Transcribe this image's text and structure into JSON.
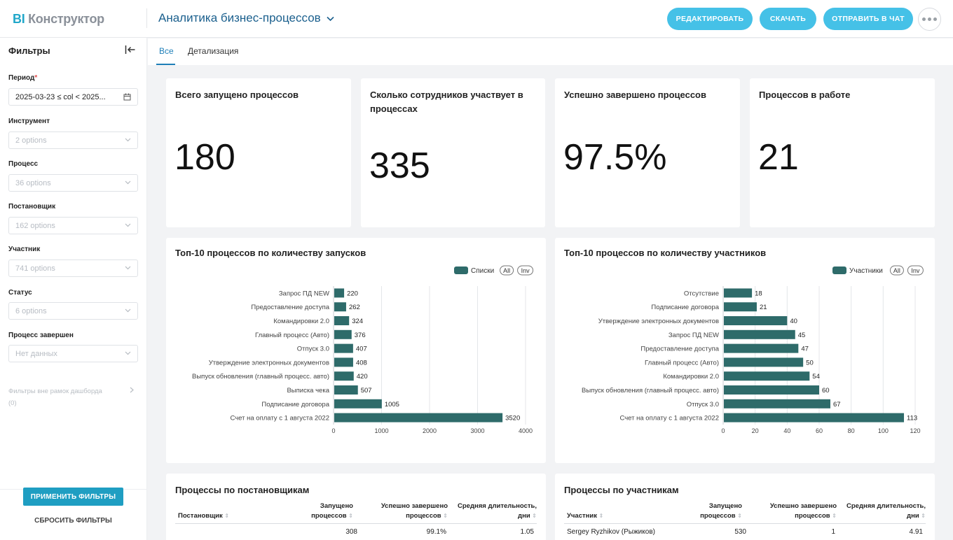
{
  "header": {
    "logo_bi": "BI",
    "logo_text": "Конструктор",
    "dashboard_title": "Аналитика бизнес-процессов",
    "buttons": {
      "edit": "РЕДАКТИРОВАТЬ",
      "download": "СКАЧАТЬ",
      "send": "ОТПРАВИТЬ В ЧАТ"
    }
  },
  "sidebar": {
    "title": "Фильтры",
    "filters": [
      {
        "label": "Период",
        "required": "*",
        "value": "2025-03-23 ≤ col < 2025..."
      },
      {
        "label": "Инструмент",
        "value": "2 options"
      },
      {
        "label": "Процесс",
        "value": "36 options"
      },
      {
        "label": "Постановщик",
        "value": "162 options"
      },
      {
        "label": "Участник",
        "value": "741 options"
      },
      {
        "label": "Статус",
        "value": "6 options"
      },
      {
        "label": "Процесс завершен",
        "value": "Нет данных"
      }
    ],
    "outside_filters": "Фильтры вне рамок дашборда",
    "outside_count": "(0)",
    "apply": "ПРИМЕНИТЬ ФИЛЬТРЫ",
    "reset": "СБРОСИТЬ ФИЛЬТРЫ"
  },
  "tabs": [
    "Все",
    "Детализация"
  ],
  "kpis": [
    {
      "title": "Всего запущено процессов",
      "value": "180"
    },
    {
      "title": "Сколько сотрудников участвует в процессах",
      "value": "335"
    },
    {
      "title": "Успешно завершено процессов",
      "value": "97.5%"
    },
    {
      "title": "Процессов в работе",
      "value": "21"
    }
  ],
  "chart_data": [
    {
      "type": "bar",
      "orientation": "horizontal",
      "title": "Топ-10 процессов по количеству запусков",
      "legend": {
        "label": "Списки",
        "all": "All",
        "inv": "Inv",
        "position": "top-right"
      },
      "color": "#2e6b6a",
      "categories": [
        "Запрос ПД NEW",
        "Предоставление доступа",
        "Командировки 2.0",
        "Главный процесс (Авто)",
        "Отпуск 3.0",
        "Утверждение электронных документов",
        "Выпуск обновления (главный процесс. авто)",
        "Выписка чека",
        "Подписание договора",
        "Счет на оплату с 1 августа 2022"
      ],
      "values": [
        220,
        262,
        324,
        376,
        407,
        408,
        420,
        507,
        1005,
        3520
      ],
      "xlim": [
        0,
        4000
      ],
      "xticks": [
        0,
        1000,
        2000,
        3000,
        4000
      ],
      "grid": true
    },
    {
      "type": "bar",
      "orientation": "horizontal",
      "title": "Топ-10 процессов по количеству участников",
      "legend": {
        "label": "Участники",
        "all": "All",
        "inv": "Inv",
        "position": "top-right"
      },
      "color": "#2e6b6a",
      "categories": [
        "Отсутствие",
        "Подписание договора",
        "Утверждение электронных документов",
        "Запрос ПД NEW",
        "Предоставление доступа",
        "Главный процесс (Авто)",
        "Командировки 2.0",
        "Выпуск обновления (главный процесс. авто)",
        "Отпуск 3.0",
        "Счет на оплату с 1 августа 2022"
      ],
      "values": [
        18,
        21,
        40,
        45,
        47,
        50,
        54,
        60,
        67,
        113
      ],
      "xlim": [
        0,
        120
      ],
      "xticks": [
        0,
        20,
        40,
        60,
        80,
        100,
        120
      ],
      "grid": true
    }
  ],
  "tables": [
    {
      "title": "Процессы по постановщикам",
      "headers": [
        "Постановщик",
        "Запущено процессов",
        "Успешно завершено процессов",
        "Средняя длительность, дни"
      ],
      "rows": [
        [
          "",
          "308",
          "99.1%",
          "1.05"
        ]
      ]
    },
    {
      "title": "Процессы по участникам",
      "headers": [
        "Участник",
        "Запущено процессов",
        "Успешно завершено процессов",
        "Средняя длительность, дни"
      ],
      "rows": [
        [
          "Sergey Ryzhikov (Рыжиков)",
          "530",
          "1",
          "4.91"
        ]
      ]
    }
  ]
}
